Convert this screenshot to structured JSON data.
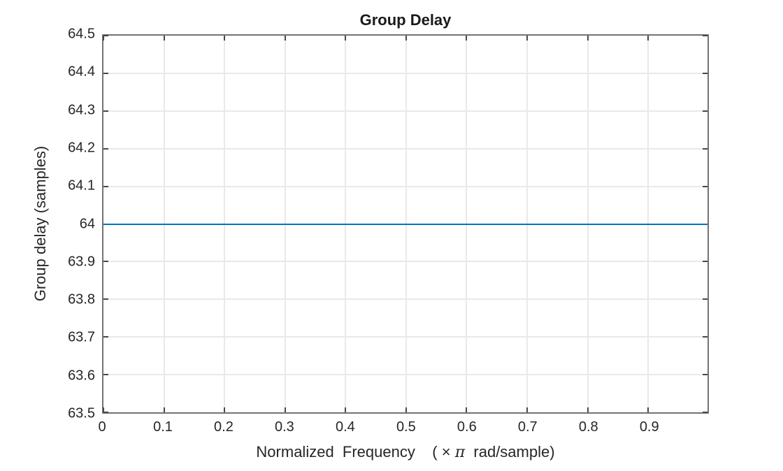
{
  "figure": {
    "background_color": "#ffffff"
  },
  "style": {
    "axis_box_color": "#737373",
    "tick_mark_color": "#484848",
    "grid_color": "#e9e9e9",
    "text_color": "#262626",
    "title_color": "#1a1a1a"
  },
  "chart_data": {
    "type": "line",
    "title": "Group Delay",
    "xlabel": "Normalized Frequency (×π rad/sample)",
    "xlabel_parts": {
      "prefix": "Normalized  Frequency    ( × ",
      "pi": "π",
      "suffix": "  rad/sample)"
    },
    "ylabel": "Group delay (samples)",
    "xlim": [
      0,
      0.998046875
    ],
    "ylim": [
      63.5,
      64.5
    ],
    "xticks": [
      0,
      0.1,
      0.2,
      0.3,
      0.4,
      0.5,
      0.6,
      0.7,
      0.8,
      0.9
    ],
    "xtick_labels": [
      "0",
      "0.1",
      "0.2",
      "0.3",
      "0.4",
      "0.5",
      "0.6",
      "0.7",
      "0.8",
      "0.9"
    ],
    "yticks": [
      63.5,
      63.6,
      63.7,
      63.8,
      63.9,
      64,
      64.1,
      64.2,
      64.3,
      64.4,
      64.5
    ],
    "ytick_labels": [
      "63.5",
      "63.6",
      "63.7",
      "63.8",
      "63.9",
      "64",
      "64.1",
      "64.2",
      "64.3",
      "64.4",
      "64.5"
    ],
    "grid": true,
    "legend": "none",
    "series": [
      {
        "name": "group-delay",
        "color": "#0072BD",
        "constant_value": 64,
        "x": [
          0,
          0.998046875
        ],
        "y": [
          64,
          64
        ]
      }
    ]
  }
}
